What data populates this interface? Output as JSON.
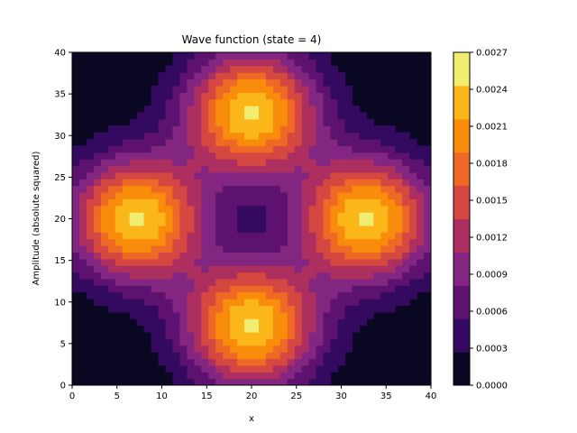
{
  "chart_data": {
    "type": "heatmap",
    "subtype": "filled-contour",
    "title": "Wave function (state = 4)",
    "xlabel": "x",
    "ylabel": "Amplitude (absolute squared)",
    "xlim": [
      0,
      40
    ],
    "ylim": [
      0,
      40
    ],
    "xticks": [
      "0",
      "5",
      "10",
      "15",
      "20",
      "25",
      "30",
      "35",
      "40"
    ],
    "yticks": [
      "0",
      "5",
      "10",
      "15",
      "20",
      "25",
      "30",
      "35",
      "40"
    ],
    "grid": false,
    "colormap": "inferno",
    "peak_value": 0.0027,
    "lobes": [
      {
        "x": 7.2,
        "y": 20.0
      },
      {
        "x": 32.8,
        "y": 20.0
      },
      {
        "x": 20.0,
        "y": 7.2
      },
      {
        "x": 20.0,
        "y": 32.8
      }
    ],
    "colorbar": {
      "levels": [
        "0.0000",
        "0.0003",
        "0.0006",
        "0.0009",
        "0.0012",
        "0.0015",
        "0.0018",
        "0.0021",
        "0.0024",
        "0.0027"
      ],
      "colors": [
        "#0a0722",
        "#330a5f",
        "#5c126e",
        "#832681",
        "#ac2f5f",
        "#d44841",
        "#ed6925",
        "#f98c0a",
        "#fbb61a",
        "#f1ed71"
      ]
    }
  }
}
